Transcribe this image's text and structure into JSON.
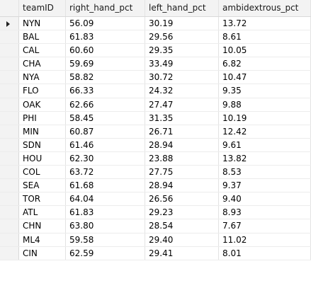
{
  "columns": [
    "teamID",
    "right_hand_pct",
    "left_hand_pct",
    "ambidextrous_pct"
  ],
  "rows": [
    [
      "NYN",
      "56.09",
      "30.19",
      "13.72"
    ],
    [
      "BAL",
      "61.83",
      "29.56",
      "8.61"
    ],
    [
      "CAL",
      "60.60",
      "29.35",
      "10.05"
    ],
    [
      "CHA",
      "59.69",
      "33.49",
      "6.82"
    ],
    [
      "NYA",
      "58.82",
      "30.72",
      "10.47"
    ],
    [
      "FLO",
      "66.33",
      "24.32",
      "9.35"
    ],
    [
      "OAK",
      "62.66",
      "27.47",
      "9.88"
    ],
    [
      "PHI",
      "58.45",
      "31.35",
      "10.19"
    ],
    [
      "MIN",
      "60.87",
      "26.71",
      "12.42"
    ],
    [
      "SDN",
      "61.46",
      "28.94",
      "9.61"
    ],
    [
      "HOU",
      "62.30",
      "23.88",
      "13.82"
    ],
    [
      "COL",
      "63.72",
      "27.75",
      "8.53"
    ],
    [
      "SEA",
      "61.68",
      "28.94",
      "9.37"
    ],
    [
      "TOR",
      "64.04",
      "26.56",
      "9.40"
    ],
    [
      "ATL",
      "61.83",
      "29.23",
      "8.93"
    ],
    [
      "CHN",
      "63.80",
      "28.54",
      "7.67"
    ],
    [
      "ML4",
      "59.58",
      "29.40",
      "11.02"
    ],
    [
      "CIN",
      "62.59",
      "29.41",
      "8.01"
    ]
  ],
  "selected_row_index": 0,
  "icons": {
    "row_pointer": "row-pointer-icon"
  }
}
